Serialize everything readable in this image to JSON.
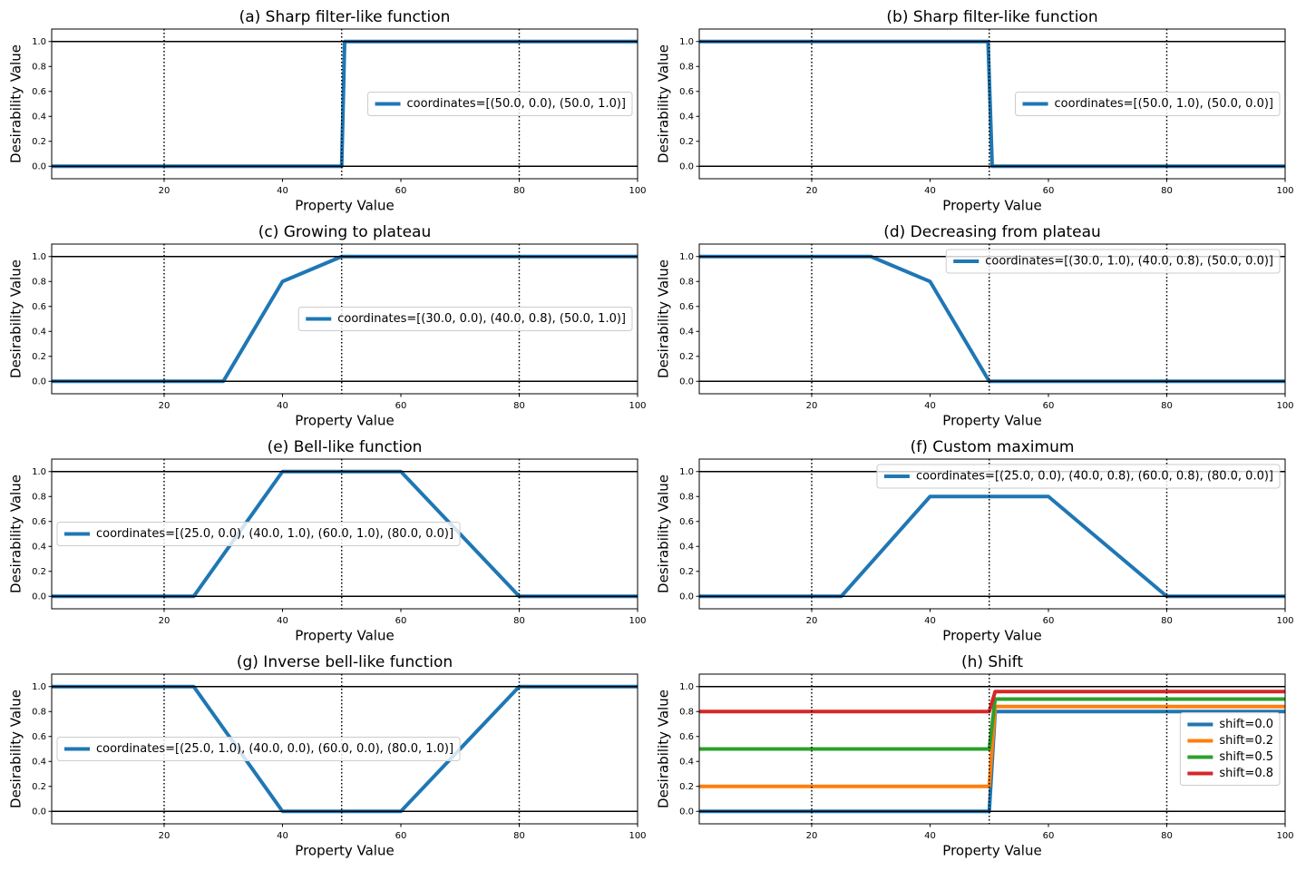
{
  "chart_data": [
    {
      "type": "line",
      "title": "(a) Sharp filter-like function",
      "xlabel": "Property Value",
      "ylabel": "Desirability Value",
      "x": [
        1,
        50,
        50.5,
        100
      ],
      "series": [
        {
          "name": "coordinates=[(50.0, 0.0), (50.0, 1.0)]",
          "color": "#1f77b4",
          "values": [
            0,
            0,
            1,
            1
          ]
        }
      ],
      "xlim": [
        1,
        100
      ],
      "ylim": [
        -0.1,
        1.1
      ],
      "xticks": [
        20,
        40,
        60,
        80,
        100
      ],
      "yticks": [
        {
          "value": 0,
          "label": "0.0"
        },
        0.2,
        0.4,
        0.6,
        0.8,
        {
          "value": 1,
          "label": "1.0"
        }
      ],
      "vlines": [
        20,
        50,
        80
      ],
      "hlines": [
        0,
        1
      ],
      "legend_loc": "center right"
    },
    {
      "type": "line",
      "title": "(b) Sharp filter-like function",
      "xlabel": "Property Value",
      "ylabel": "Desirability Value",
      "x": [
        1,
        49.8,
        50.5,
        100
      ],
      "series": [
        {
          "name": "coordinates=[(50.0, 1.0), (50.0, 0.0)]",
          "color": "#1f77b4",
          "values": [
            1,
            1,
            0,
            0
          ]
        }
      ],
      "xlim": [
        1,
        100
      ],
      "ylim": [
        -0.1,
        1.1
      ],
      "xticks": [
        20,
        40,
        60,
        80,
        100
      ],
      "yticks": [
        {
          "value": 0,
          "label": "0.0"
        },
        0.2,
        0.4,
        0.6,
        0.8,
        {
          "value": 1,
          "label": "1.0"
        }
      ],
      "vlines": [
        20,
        50,
        80
      ],
      "hlines": [
        0,
        1
      ],
      "legend_loc": "center right"
    },
    {
      "type": "line",
      "title": "(c) Growing to plateau",
      "xlabel": "Property Value",
      "ylabel": "Desirability Value",
      "x": [
        1,
        30,
        40,
        50,
        100
      ],
      "series": [
        {
          "name": "coordinates=[(30.0, 0.0), (40.0, 0.8), (50.0, 1.0)]",
          "color": "#1f77b4",
          "values": [
            0,
            0,
            0.8,
            1,
            1
          ]
        }
      ],
      "xlim": [
        1,
        100
      ],
      "ylim": [
        -0.1,
        1.1
      ],
      "xticks": [
        20,
        40,
        60,
        80,
        100
      ],
      "yticks": [
        {
          "value": 0,
          "label": "0.0"
        },
        0.2,
        0.4,
        0.6,
        0.8,
        {
          "value": 1,
          "label": "1.0"
        }
      ],
      "vlines": [
        20,
        50,
        80
      ],
      "hlines": [
        0,
        1
      ],
      "legend_loc": "center right"
    },
    {
      "type": "line",
      "title": "(d) Decreasing from plateau",
      "xlabel": "Property Value",
      "ylabel": "Desirability Value",
      "x": [
        1,
        30,
        40,
        50,
        100
      ],
      "series": [
        {
          "name": "coordinates=[(30.0, 1.0), (40.0, 0.8), (50.0, 0.0)]",
          "color": "#1f77b4",
          "values": [
            1,
            1,
            0.8,
            0,
            0
          ]
        }
      ],
      "xlim": [
        1,
        100
      ],
      "ylim": [
        -0.1,
        1.1
      ],
      "xticks": [
        20,
        40,
        60,
        80,
        100
      ],
      "yticks": [
        {
          "value": 0,
          "label": "0.0"
        },
        0.2,
        0.4,
        0.6,
        0.8,
        {
          "value": 1,
          "label": "1.0"
        }
      ],
      "vlines": [
        20,
        50,
        80
      ],
      "hlines": [
        0,
        1
      ],
      "legend_loc": "upper right"
    },
    {
      "type": "line",
      "title": "(e) Bell-like function",
      "xlabel": "Property Value",
      "ylabel": "Desirability Value",
      "x": [
        1,
        25,
        40,
        60,
        80,
        100
      ],
      "series": [
        {
          "name": "coordinates=[(25.0, 0.0), (40.0, 1.0), (60.0, 1.0), (80.0, 0.0)]",
          "color": "#1f77b4",
          "values": [
            0,
            0,
            1,
            1,
            0,
            0
          ]
        }
      ],
      "xlim": [
        1,
        100
      ],
      "ylim": [
        -0.1,
        1.1
      ],
      "xticks": [
        20,
        40,
        60,
        80,
        100
      ],
      "yticks": [
        {
          "value": 0,
          "label": "0.0"
        },
        0.2,
        0.4,
        0.6,
        0.8,
        {
          "value": 1,
          "label": "1.0"
        }
      ],
      "vlines": [
        20,
        50,
        80
      ],
      "hlines": [
        0,
        1
      ],
      "legend_loc": "center left"
    },
    {
      "type": "line",
      "title": "(f) Custom maximum",
      "xlabel": "Property Value",
      "ylabel": "Desirability Value",
      "x": [
        1,
        25,
        40,
        60,
        80,
        100
      ],
      "series": [
        {
          "name": "coordinates=[(25.0, 0.0), (40.0, 0.8), (60.0, 0.8), (80.0, 0.0)]",
          "color": "#1f77b4",
          "values": [
            0,
            0,
            0.8,
            0.8,
            0,
            0
          ]
        }
      ],
      "xlim": [
        1,
        100
      ],
      "ylim": [
        -0.1,
        1.1
      ],
      "xticks": [
        20,
        40,
        60,
        80,
        100
      ],
      "yticks": [
        {
          "value": 0,
          "label": "0.0"
        },
        0.2,
        0.4,
        0.6,
        0.8,
        {
          "value": 1,
          "label": "1.0"
        }
      ],
      "vlines": [
        20,
        50,
        80
      ],
      "hlines": [
        0,
        1
      ],
      "legend_loc": "upper right"
    },
    {
      "type": "line",
      "title": "(g) Inverse bell-like function",
      "xlabel": "Property Value",
      "ylabel": "Desirability Value",
      "x": [
        1,
        25,
        40,
        60,
        80,
        100
      ],
      "series": [
        {
          "name": "coordinates=[(25.0, 1.0), (40.0, 0.0), (60.0, 0.0), (80.0, 1.0)]",
          "color": "#1f77b4",
          "values": [
            1,
            1,
            0,
            0,
            1,
            1
          ]
        }
      ],
      "xlim": [
        1,
        100
      ],
      "ylim": [
        -0.1,
        1.1
      ],
      "xticks": [
        20,
        40,
        60,
        80,
        100
      ],
      "yticks": [
        {
          "value": 0,
          "label": "0.0"
        },
        0.2,
        0.4,
        0.6,
        0.8,
        {
          "value": 1,
          "label": "1.0"
        }
      ],
      "vlines": [
        20,
        50,
        80
      ],
      "hlines": [
        0,
        1
      ],
      "legend_loc": "center left"
    },
    {
      "type": "line",
      "title": "(h) Shift",
      "xlabel": "Property Value",
      "ylabel": "Desirability Value",
      "x": [
        1,
        50,
        51,
        100
      ],
      "series": [
        {
          "name": "shift=0.0",
          "color": "#1f77b4",
          "values": [
            0,
            0,
            0.8,
            0.8
          ]
        },
        {
          "name": "shift=0.2",
          "color": "#ff7f0e",
          "values": [
            0.2,
            0.2,
            0.84,
            0.84
          ]
        },
        {
          "name": "shift=0.5",
          "color": "#2ca02c",
          "values": [
            0.5,
            0.5,
            0.9,
            0.9
          ]
        },
        {
          "name": "shift=0.8",
          "color": "#d62728",
          "values": [
            0.8,
            0.8,
            0.96,
            0.96
          ]
        }
      ],
      "xlim": [
        1,
        100
      ],
      "ylim": [
        -0.1,
        1.1
      ],
      "xticks": [
        20,
        40,
        60,
        80,
        100
      ],
      "yticks": [
        {
          "value": 0,
          "label": "0.0"
        },
        0.2,
        0.4,
        0.6,
        0.8,
        {
          "value": 1,
          "label": "1.0"
        }
      ],
      "vlines": [
        20,
        50,
        80
      ],
      "hlines": [
        0,
        1
      ],
      "legend_loc": "center right"
    }
  ]
}
